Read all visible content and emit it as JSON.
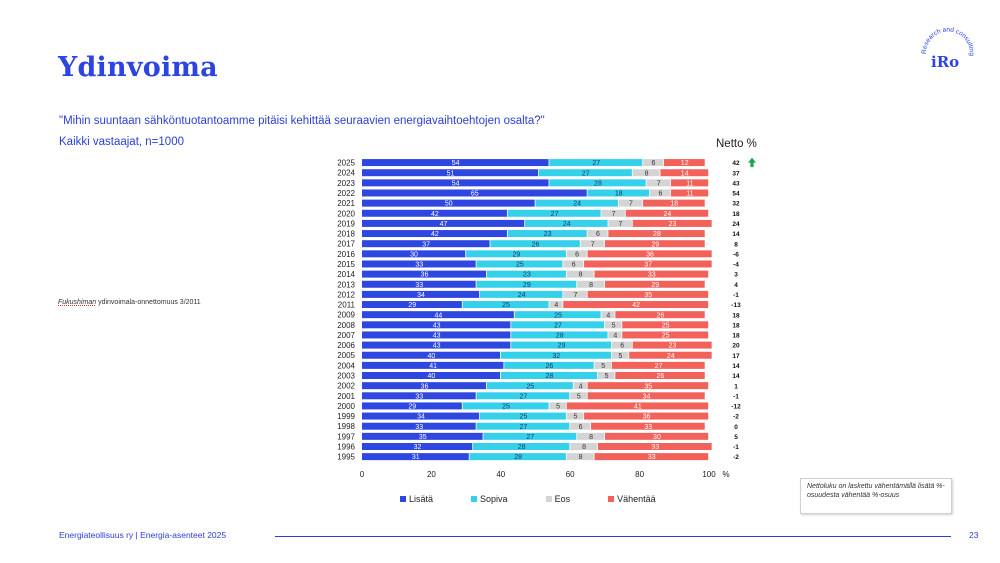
{
  "header": {
    "title": "Ydinvoima",
    "question": "\"Mihin suuntaan sähköntuotantoamme pitäisi kehittää seuraavien energiavaihtoehtojen osalta?\"",
    "sample": "Kaikki vastaajat, n=1000"
  },
  "logo": {
    "text": "iRo",
    "arc_text": "Research and consulting"
  },
  "annotation": {
    "italic_part": "Fukushiman",
    "rest": " ydinvoimala-onnettomuus 3/2011",
    "year": "2011"
  },
  "net_header": "Netto %",
  "note": "Nettoluku on laskettu vähentämällä lisätä %-osuudesta vähentää %-osuus",
  "footer": {
    "text": "Energiateollisuus ry | Energia-asenteet 2025",
    "page": "23"
  },
  "colors": {
    "accent": "#2d44e0",
    "Lisätä": "#2e47e0",
    "Sopiva": "#35d0ea",
    "Eos": "#d4d4d4",
    "Vähentää": "#f2625a",
    "arrow": "#1aa84a"
  },
  "chart_data": {
    "type": "bar",
    "orientation": "horizontal-stacked-100",
    "title": "Ydinvoima",
    "xlabel": "%",
    "xlim": [
      0,
      100
    ],
    "xticks": [
      "0",
      "20",
      "40",
      "60",
      "80",
      "100"
    ],
    "legend_position": "bottom",
    "categories": [
      "2025",
      "2024",
      "2023",
      "2022",
      "2021",
      "2020",
      "2019",
      "2018",
      "2017",
      "2016",
      "2015",
      "2014",
      "2013",
      "2012",
      "2011",
      "2009",
      "2008",
      "2007",
      "2006",
      "2005",
      "2004",
      "2003",
      "2002",
      "2001",
      "2000",
      "1999",
      "1998",
      "1997",
      "1996",
      "1995"
    ],
    "series": [
      {
        "name": "Lisätä",
        "values": [
          54,
          51,
          54,
          65,
          50,
          42,
          47,
          42,
          37,
          30,
          33,
          36,
          33,
          34,
          29,
          44,
          43,
          43,
          43,
          40,
          41,
          40,
          36,
          33,
          29,
          34,
          33,
          35,
          32,
          31
        ]
      },
      {
        "name": "Sopiva",
        "values": [
          27,
          27,
          28,
          18,
          24,
          27,
          24,
          23,
          26,
          29,
          25,
          23,
          29,
          24,
          25,
          25,
          27,
          28,
          29,
          32,
          26,
          28,
          25,
          27,
          25,
          25,
          27,
          27,
          28,
          28
        ]
      },
      {
        "name": "Eos",
        "values": [
          6,
          8,
          7,
          6,
          7,
          7,
          7,
          6,
          7,
          6,
          6,
          8,
          8,
          7,
          4,
          4,
          5,
          4,
          6,
          5,
          5,
          5,
          4,
          5,
          5,
          5,
          6,
          8,
          8,
          8
        ]
      },
      {
        "name": "Vähentää",
        "values": [
          12,
          14,
          11,
          11,
          18,
          24,
          23,
          28,
          29,
          36,
          37,
          33,
          29,
          35,
          42,
          26,
          25,
          25,
          23,
          24,
          27,
          26,
          35,
          34,
          41,
          36,
          33,
          30,
          33,
          33
        ]
      }
    ],
    "net": {
      "label": "Netto %",
      "values": [
        42,
        37,
        43,
        54,
        32,
        18,
        24,
        14,
        8,
        -6,
        -4,
        3,
        4,
        -1,
        -13,
        18,
        18,
        18,
        20,
        17,
        14,
        14,
        1,
        -1,
        -12,
        -2,
        0,
        5,
        -1,
        -2
      ],
      "trend_icon": "up-arrow",
      "trend_row": "2025"
    }
  }
}
